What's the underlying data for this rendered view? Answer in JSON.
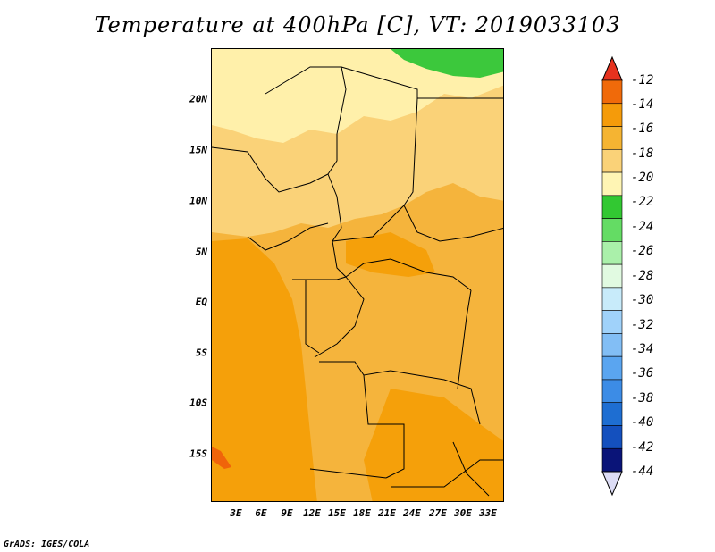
{
  "title": "Temperature at 400hPa [C], VT: 2019033103",
  "footer": "GrADS: IGES/COLA",
  "map": {
    "lat_ticks": [
      "20N",
      "15N",
      "10N",
      "5N",
      "EQ",
      "5S",
      "10S",
      "15S"
    ],
    "lon_ticks": [
      "3E",
      "6E",
      "9E",
      "12E",
      "15E",
      "18E",
      "21E",
      "24E",
      "27E",
      "30E",
      "33E"
    ],
    "colors": {
      "c_12_14": "#f0640a",
      "c_14_16": "#f5a00a",
      "c_16_18": "#f5b43c",
      "c_18_20": "#fad278",
      "c_20_22": "#fff0aa",
      "c_22_24": "#3cc83c"
    }
  },
  "legend": {
    "labels": [
      "-12",
      "-14",
      "-16",
      "-18",
      "-20",
      "-22",
      "-24",
      "-26",
      "-28",
      "-30",
      "-32",
      "-34",
      "-36",
      "-38",
      "-40",
      "-42",
      "-44"
    ],
    "top_color": "#e6321e",
    "bottom_color": "#dcdcf5",
    "colors": [
      "#f06a0a",
      "#f59b0a",
      "#f5b432",
      "#fad278",
      "#fff5b4",
      "#32c832",
      "#64dc64",
      "#aaf0aa",
      "#e1fae1",
      "#c8ebfa",
      "#a0d2fa",
      "#82bef5",
      "#5aa5f0",
      "#3c8ce6",
      "#1e6ed2",
      "#1450be",
      "#0a1478"
    ]
  }
}
